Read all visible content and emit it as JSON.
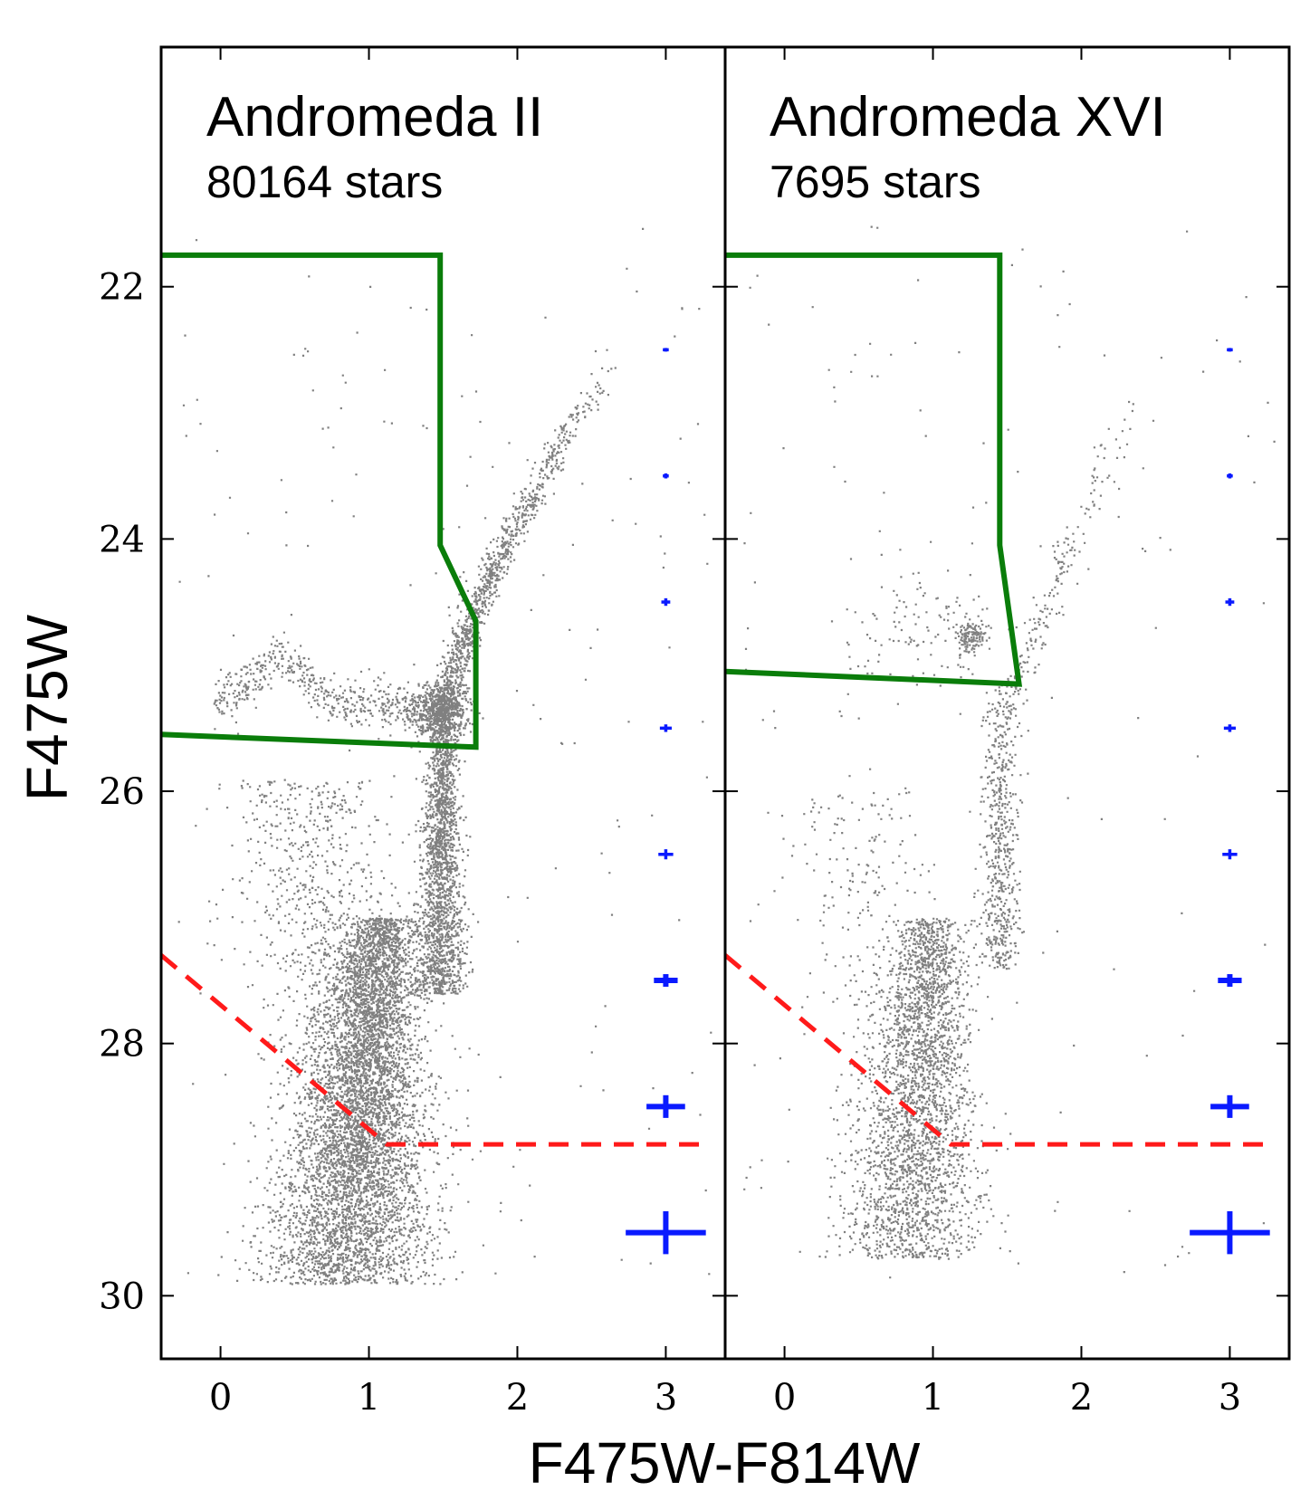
{
  "chart_data": {
    "type": "scatter",
    "title": "",
    "xlabel": "F475W-F814W",
    "ylabel": "F475W",
    "xlim": [
      -0.4,
      3.4
    ],
    "ylim": [
      30.5,
      20.1
    ],
    "y_inverted": true,
    "x_ticks": [
      0,
      1,
      2,
      3
    ],
    "x_tick_labels": [
      "0",
      "1",
      "2",
      "3"
    ],
    "y_ticks": [
      22,
      24,
      26,
      28,
      30
    ],
    "y_tick_labels": [
      "22",
      "24",
      "26",
      "28",
      "30"
    ],
    "colors": {
      "points": "#555555",
      "selection_box": "#0a7d0a",
      "completeness_line": "#ff1a1a",
      "error_bars": "#0a1aff"
    },
    "error_bars": {
      "x": 3.0,
      "mags": [
        22.5,
        23.5,
        24.5,
        25.5,
        26.5,
        27.5,
        28.5,
        29.5
      ],
      "xerr": [
        0.02,
        0.02,
        0.03,
        0.04,
        0.05,
        0.08,
        0.13,
        0.27
      ],
      "yerr": [
        0.01,
        0.02,
        0.03,
        0.03,
        0.04,
        0.05,
        0.09,
        0.17
      ]
    },
    "panels": [
      {
        "name": "Andromeda II",
        "count_label": "80164 stars",
        "n_stars": 80164,
        "selection_box": {
          "x": [
            -0.4,
            1.48,
            1.48,
            1.72,
            1.72,
            -0.4
          ],
          "y": [
            21.75,
            21.75,
            24.05,
            24.65,
            25.65,
            25.55
          ]
        },
        "completeness_line": {
          "x": [
            -0.4,
            1.12,
            3.3
          ],
          "y": [
            27.3,
            28.8,
            28.8
          ]
        },
        "features": {
          "rgb_tip": [
            2.3,
            22.6
          ],
          "red_clump": [
            1.45,
            25.35
          ],
          "horizontal_branch_blue_end": [
            0.0,
            25.3
          ],
          "main_sequence_turnoff": [
            0.95,
            28.4
          ]
        }
      },
      {
        "name": "Andromeda XVI",
        "count_label": "7695 stars",
        "n_stars": 7695,
        "selection_box": {
          "x": [
            -0.4,
            1.45,
            1.45,
            1.58,
            -0.4
          ],
          "y": [
            21.75,
            21.75,
            24.05,
            25.15,
            25.05
          ]
        },
        "completeness_line": {
          "x": [
            -0.4,
            1.12,
            3.3
          ],
          "y": [
            27.3,
            28.8,
            28.8
          ]
        },
        "features": {
          "rgb_tip": [
            2.2,
            22.4
          ],
          "red_clump": [
            1.25,
            24.75
          ],
          "main_sequence_turnoff": [
            0.95,
            28.0
          ]
        }
      }
    ]
  }
}
